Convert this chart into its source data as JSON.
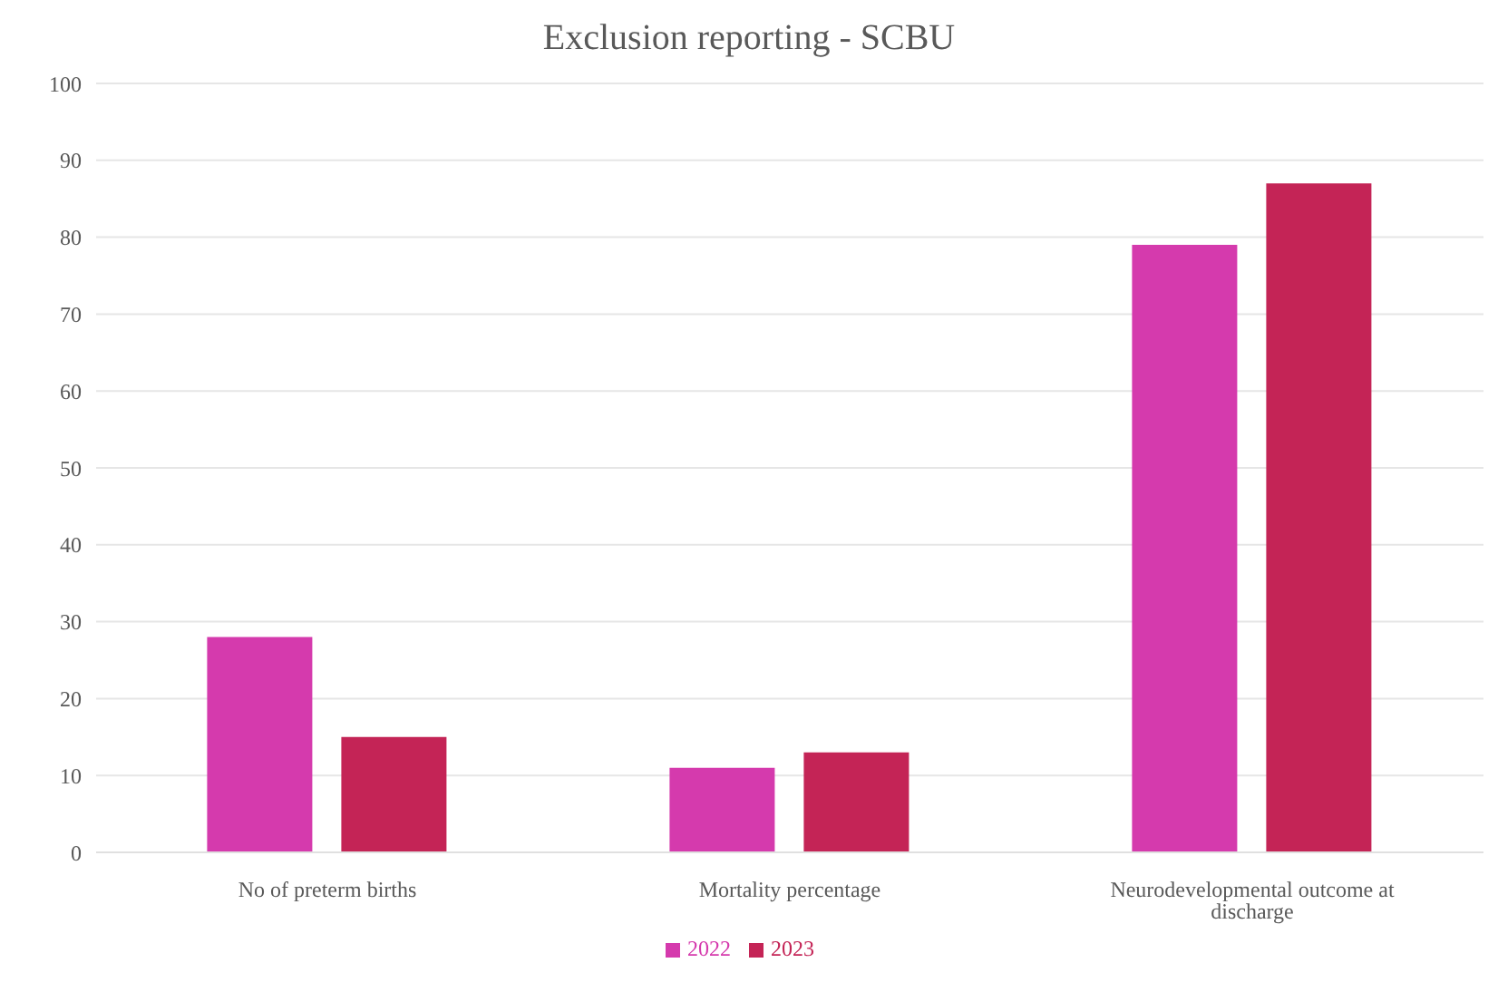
{
  "chart_data": {
    "type": "bar",
    "title": "Exclusion reporting - SCBU",
    "categories": [
      "No of preterm births",
      "Mortality percentage",
      "Neurodevelopmental outcome at discharge"
    ],
    "series": [
      {
        "name": "2022",
        "color": "#d53aad",
        "values": [
          28,
          11,
          79
        ]
      },
      {
        "name": "2023",
        "color": "#c42456",
        "values": [
          15,
          13,
          87
        ]
      }
    ],
    "ylim": [
      0,
      100
    ],
    "yticks": [
      0,
      10,
      20,
      30,
      40,
      50,
      60,
      70,
      80,
      90,
      100
    ],
    "grid": "y",
    "legend": "bottom"
  }
}
